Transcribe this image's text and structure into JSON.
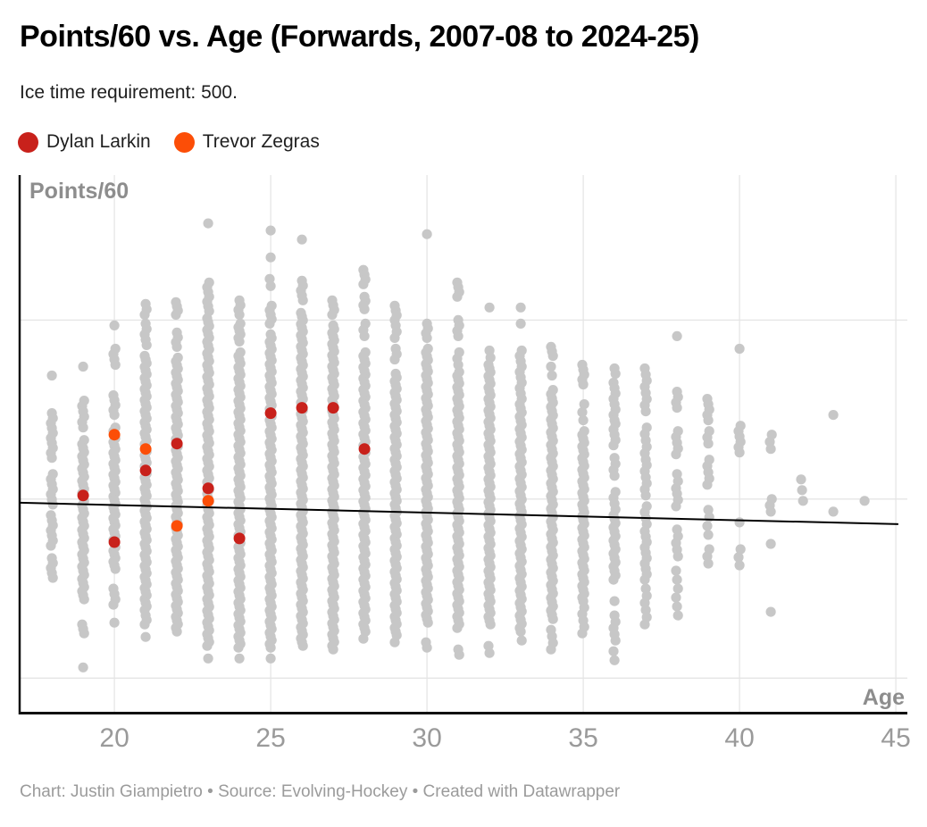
{
  "header": {
    "title": "Points/60 vs. Age (Forwards, 2007-08 to 2024-25)",
    "subtitle": "Ice time requirement: 500."
  },
  "footer": {
    "text": "Chart: Justin Giampietro • Source: Evolving-Hockey • Created with Datawrapper"
  },
  "chart_data": {
    "type": "scatter",
    "title": "Points/60 vs. Age (Forwards, 2007-08 to 2024-25)",
    "subtitle": "Ice time requirement: 500.",
    "x_axis": {
      "label": "Age",
      "ticks": [
        20,
        25,
        30,
        35,
        40,
        45
      ],
      "range": [
        16.97,
        45.37
      ],
      "gridlines": true
    },
    "y_axis": {
      "label": "Points/60",
      "range": [
        0.797,
        3.81
      ],
      "gridline_values": [
        1,
        2,
        3
      ],
      "tick_labels_hidden": true
    },
    "colors": {
      "background_dots": "#c7c7c7",
      "gridline": "#e5e5e5",
      "axis": "#111111",
      "tick_label": "#9a9a9a",
      "axis_label": "#8d8d8d"
    },
    "trend_line": {
      "color": "#000000",
      "from": {
        "age": 16.97,
        "value": 1.98
      },
      "to": {
        "age": 45.08,
        "value": 1.86
      }
    },
    "series": [
      {
        "name": "Dylan Larkin",
        "color": "#c8211b",
        "points": [
          {
            "age": 19,
            "value": 2.02
          },
          {
            "age": 20,
            "value": 1.76
          },
          {
            "age": 21,
            "value": 2.16
          },
          {
            "age": 22,
            "value": 2.31
          },
          {
            "age": 23,
            "value": 2.06
          },
          {
            "age": 24,
            "value": 1.78
          },
          {
            "age": 25,
            "value": 2.48
          },
          {
            "age": 26,
            "value": 2.51
          },
          {
            "age": 27,
            "value": 2.51
          },
          {
            "age": 28,
            "value": 2.28
          }
        ]
      },
      {
        "name": "Trevor Zegras",
        "color": "#fc4e07",
        "points": [
          {
            "age": 20,
            "value": 2.36
          },
          {
            "age": 21,
            "value": 2.28
          },
          {
            "age": 22,
            "value": 1.85
          },
          {
            "age": 23,
            "value": 1.99
          }
        ]
      }
    ],
    "background_points": {
      "name": "All forwards (unlabeled)",
      "color": "#c7c7c7",
      "columns": [
        {
          "age": 18,
          "singles": [
            2.69
          ],
          "runs": [
            [
              2.48,
              2.23,
              10
            ],
            [
              2.14,
              1.97,
              7
            ],
            [
              1.91,
              1.74,
              7
            ],
            [
              1.67,
              1.56,
              5
            ]
          ]
        },
        {
          "age": 19,
          "singles": [
            2.74,
            1.06
          ],
          "runs": [
            [
              2.55,
              2.4,
              6
            ],
            [
              2.33,
              1.44,
              40
            ],
            [
              1.3,
              1.25,
              3
            ]
          ]
        },
        {
          "age": 20,
          "singles": [
            2.97,
            1.31
          ],
          "runs": [
            [
              2.84,
              2.75,
              4
            ],
            [
              2.58,
              2.47,
              5
            ],
            [
              2.4,
              1.61,
              40
            ],
            [
              1.5,
              1.41,
              4
            ]
          ]
        },
        {
          "age": 21,
          "singles": [
            1.23
          ],
          "runs": [
            [
              3.09,
              3.03,
              3
            ],
            [
              2.98,
              2.86,
              5
            ],
            [
              2.8,
              1.38,
              70
            ],
            [
              1.35,
              1.3,
              3
            ]
          ]
        },
        {
          "age": 22,
          "singles": [],
          "runs": [
            [
              3.1,
              3.03,
              4
            ],
            [
              2.93,
              2.85,
              4
            ],
            [
              2.79,
              1.26,
              75
            ]
          ]
        },
        {
          "age": 23,
          "singles": [
            3.54,
            1.11
          ],
          "runs": [
            [
              3.21,
              3.05,
              7
            ],
            [
              3.01,
              1.18,
              85
            ]
          ]
        },
        {
          "age": 24,
          "singles": [
            1.11
          ],
          "runs": [
            [
              3.11,
              3.03,
              4
            ],
            [
              2.98,
              2.88,
              6
            ],
            [
              2.82,
              1.17,
              80
            ]
          ]
        },
        {
          "age": 25,
          "singles": [
            3.5,
            3.35,
            1.11
          ],
          "runs": [
            [
              3.23,
              3.19,
              2
            ],
            [
              3.08,
              2.98,
              5
            ],
            [
              2.92,
              1.17,
              85
            ]
          ]
        },
        {
          "age": 26,
          "singles": [
            3.45
          ],
          "runs": [
            [
              3.22,
              3.11,
              5
            ],
            [
              3.04,
              1.18,
              90
            ]
          ]
        },
        {
          "age": 27,
          "singles": [],
          "runs": [
            [
              3.11,
              3.03,
              4
            ],
            [
              2.97,
              1.16,
              88
            ]
          ]
        },
        {
          "age": 28,
          "singles": [],
          "runs": [
            [
              3.28,
              3.2,
              4
            ],
            [
              3.13,
              3.06,
              4
            ],
            [
              2.98,
              2.91,
              3
            ],
            [
              2.82,
              1.28,
              75
            ],
            [
              1.26,
              1.22,
              2
            ]
          ]
        },
        {
          "age": 29,
          "singles": [],
          "runs": [
            [
              3.08,
              3.0,
              4
            ],
            [
              2.97,
              2.9,
              3
            ],
            [
              2.84,
              2.78,
              3
            ],
            [
              2.7,
              1.26,
              70
            ],
            [
              1.24,
              1.2,
              2
            ]
          ]
        },
        {
          "age": 30,
          "singles": [
            3.48
          ],
          "runs": [
            [
              2.98,
              2.9,
              4
            ],
            [
              2.84,
              1.31,
              73
            ],
            [
              1.2,
              1.17,
              2
            ]
          ]
        },
        {
          "age": 31,
          "singles": [],
          "runs": [
            [
              3.21,
              3.13,
              4
            ],
            [
              3.0,
              2.91,
              4
            ],
            [
              2.82,
              2.75,
              3
            ],
            [
              2.71,
              1.28,
              68
            ],
            [
              1.16,
              1.13,
              2
            ]
          ]
        },
        {
          "age": 32,
          "singles": [
            3.07
          ],
          "runs": [
            [
              2.83,
              2.75,
              3
            ],
            [
              2.73,
              1.3,
              68
            ],
            [
              1.18,
              1.14,
              2
            ]
          ]
        },
        {
          "age": 33,
          "singles": [
            3.07,
            2.98
          ],
          "runs": [
            [
              2.83,
              2.56,
              10
            ],
            [
              2.53,
              1.28,
              55
            ],
            [
              1.26,
              1.21,
              2
            ]
          ]
        },
        {
          "age": 34,
          "singles": [],
          "runs": [
            [
              2.85,
              2.8,
              3
            ],
            [
              2.74,
              2.69,
              2
            ],
            [
              2.61,
              1.33,
              55
            ],
            [
              1.27,
              1.16,
              4
            ]
          ]
        },
        {
          "age": 35,
          "singles": [],
          "runs": [
            [
              2.75,
              2.64,
              5
            ],
            [
              2.53,
              2.44,
              3
            ],
            [
              2.38,
              1.45,
              44
            ],
            [
              1.43,
              1.25,
              6
            ]
          ]
        },
        {
          "age": 36,
          "singles": [
            1.43
          ],
          "runs": [
            [
              2.73,
              2.7,
              2
            ],
            [
              2.65,
              2.44,
              8
            ],
            [
              2.42,
              2.3,
              5
            ],
            [
              2.23,
              2.13,
              4
            ],
            [
              2.04,
              1.91,
              5
            ],
            [
              1.89,
              1.55,
              15
            ],
            [
              1.35,
              1.21,
              5
            ],
            [
              1.15,
              1.1,
              2
            ]
          ]
        },
        {
          "age": 37,
          "singles": [],
          "runs": [
            [
              2.73,
              2.49,
              8
            ],
            [
              2.4,
              2.22,
              6
            ],
            [
              2.19,
              2.02,
              6
            ],
            [
              1.96,
              1.86,
              4
            ],
            [
              1.82,
              1.55,
              10
            ],
            [
              1.5,
              1.3,
              6
            ]
          ]
        },
        {
          "age": 38,
          "singles": [
            2.91
          ],
          "runs": [
            [
              2.6,
              2.51,
              4
            ],
            [
              2.38,
              2.25,
              5
            ],
            [
              2.14,
              2.06,
              3
            ],
            [
              2.03,
              1.96,
              3
            ],
            [
              1.83,
              1.68,
              5
            ],
            [
              1.6,
              1.35,
              6
            ]
          ]
        },
        {
          "age": 39,
          "singles": [],
          "runs": [
            [
              2.56,
              2.44,
              5
            ],
            [
              2.38,
              2.31,
              3
            ],
            [
              2.22,
              2.08,
              5
            ],
            [
              1.94,
              1.9,
              2
            ],
            [
              1.85,
              1.8,
              2
            ],
            [
              1.72,
              1.64,
              3
            ]
          ]
        },
        {
          "age": 40,
          "singles": [
            2.84,
            1.87
          ],
          "runs": [
            [
              2.41,
              2.26,
              6
            ],
            [
              1.72,
              1.63,
              3
            ]
          ]
        },
        {
          "age": 41,
          "singles": [
            1.75,
            1.37
          ],
          "runs": [
            [
              2.36,
              2.28,
              3
            ],
            [
              2.0,
              1.93,
              3
            ]
          ]
        },
        {
          "age": 42,
          "singles": [],
          "runs": [
            [
              2.11,
              1.99,
              3
            ]
          ]
        },
        {
          "age": 43,
          "singles": [
            2.47,
            1.93
          ],
          "runs": []
        },
        {
          "age": 44,
          "singles": [
            1.99
          ],
          "runs": []
        }
      ]
    }
  }
}
